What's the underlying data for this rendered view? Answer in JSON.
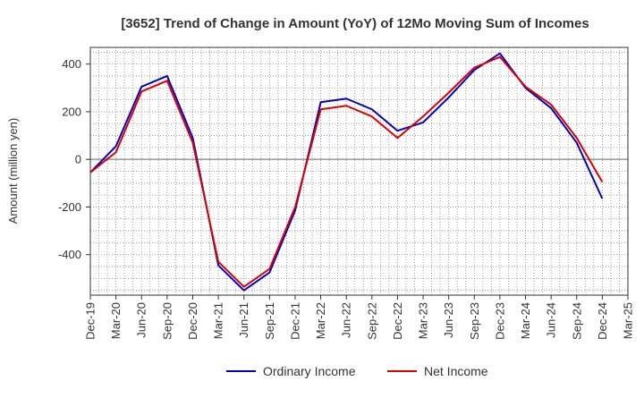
{
  "chart_data": {
    "type": "line",
    "title": "[3652]  Trend of Change in Amount (YoY) of 12Mo Moving Sum of Incomes",
    "xlabel": "",
    "ylabel": "Amount (million yen)",
    "categories": [
      "Dec-19",
      "Mar-20",
      "Jun-20",
      "Sep-20",
      "Dec-20",
      "Mar-21",
      "Jun-21",
      "Sep-21",
      "Dec-21",
      "Mar-22",
      "Jun-22",
      "Sep-22",
      "Dec-22",
      "Mar-23",
      "Jun-23",
      "Sep-23",
      "Dec-23",
      "Mar-24",
      "Jun-24",
      "Sep-24",
      "Dec-24",
      "Mar-25"
    ],
    "ylim": [
      -570,
      470
    ],
    "yticks": [
      400,
      200,
      0,
      -200,
      -400
    ],
    "ytick_labels": [
      "400",
      "200",
      "0",
      "-200",
      "-400"
    ],
    "grid": true,
    "legend_position": "bottom-center",
    "series": [
      {
        "name": "Ordinary Income",
        "color": "#0000cc",
        "values": [
          -55,
          55,
          305,
          350,
          90,
          -445,
          -550,
          -475,
          -215,
          240,
          255,
          210,
          120,
          155,
          260,
          375,
          445,
          300,
          215,
          70,
          -165,
          null
        ]
      },
      {
        "name": "Net Income",
        "color": "#dd0000",
        "values": [
          -55,
          30,
          285,
          330,
          70,
          -430,
          -535,
          -460,
          -200,
          210,
          225,
          180,
          90,
          180,
          280,
          385,
          430,
          305,
          230,
          90,
          -95,
          null
        ]
      }
    ],
    "zero_line_color": "#666666"
  }
}
